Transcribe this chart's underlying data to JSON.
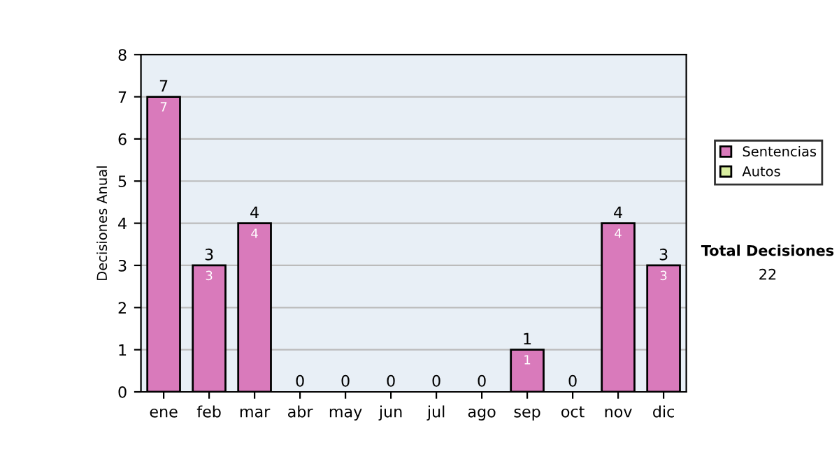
{
  "chart_data": {
    "type": "bar",
    "ylabel": "Decisiones Anual",
    "categories": [
      "ene",
      "feb",
      "mar",
      "abr",
      "may",
      "jun",
      "jul",
      "ago",
      "sep",
      "oct",
      "nov",
      "dic"
    ],
    "stacked": true,
    "series": [
      {
        "name": "Sentencias",
        "color": "#d97abb",
        "values": [
          7,
          3,
          4,
          0,
          0,
          0,
          0,
          0,
          1,
          0,
          4,
          3
        ],
        "value_labels": [
          "7",
          "3",
          "4",
          null,
          null,
          null,
          null,
          null,
          "1",
          null,
          "4",
          "3"
        ]
      },
      {
        "name": "Autos",
        "color": "#d9eea0",
        "values": [
          0,
          0,
          0,
          0,
          0,
          0,
          0,
          0,
          0,
          0,
          0,
          0
        ]
      }
    ],
    "totals": [
      "7",
      "3",
      "4",
      "0",
      "0",
      "0",
      "0",
      "0",
      "1",
      "0",
      "4",
      "3"
    ],
    "ylim": [
      0,
      8
    ],
    "yticks": [
      0,
      1,
      2,
      3,
      4,
      5,
      6,
      7,
      8
    ],
    "grid": "y",
    "legend": "right",
    "annotations": [
      "Total Decisiones",
      "22"
    ]
  }
}
